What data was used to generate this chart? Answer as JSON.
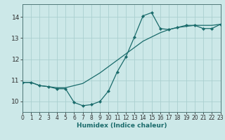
{
  "xlabel": "Humidex (Indice chaleur)",
  "background_color": "#cce8e8",
  "grid_color": "#aad0d0",
  "line_color": "#1a6b6b",
  "x_data": [
    0,
    1,
    2,
    3,
    4,
    5,
    6,
    7,
    8,
    9,
    10,
    11,
    12,
    13,
    14,
    15,
    16,
    17,
    18,
    19,
    20,
    21,
    22,
    23
  ],
  "y_hourly": [
    10.9,
    10.9,
    10.75,
    10.7,
    10.6,
    10.6,
    9.95,
    9.8,
    9.85,
    10.0,
    10.5,
    11.4,
    12.1,
    13.05,
    14.05,
    14.2,
    13.45,
    13.4,
    13.5,
    13.6,
    13.6,
    13.45,
    13.45,
    13.65
  ],
  "y_trend": [
    10.9,
    10.9,
    10.75,
    10.7,
    10.65,
    10.65,
    10.75,
    10.85,
    11.1,
    11.35,
    11.65,
    11.95,
    12.25,
    12.55,
    12.85,
    13.05,
    13.25,
    13.4,
    13.5,
    13.55,
    13.6,
    13.6,
    13.6,
    13.65
  ],
  "xlim": [
    0,
    23
  ],
  "ylim": [
    9.5,
    14.6
  ],
  "xticks": [
    0,
    1,
    2,
    3,
    4,
    5,
    6,
    7,
    8,
    9,
    10,
    11,
    12,
    13,
    14,
    15,
    16,
    17,
    18,
    19,
    20,
    21,
    22,
    23
  ],
  "yticks": [
    10,
    11,
    12,
    13,
    14
  ],
  "markersize": 2.2,
  "linewidth": 0.9,
  "tick_fontsize": 5.5,
  "xlabel_fontsize": 6.5
}
